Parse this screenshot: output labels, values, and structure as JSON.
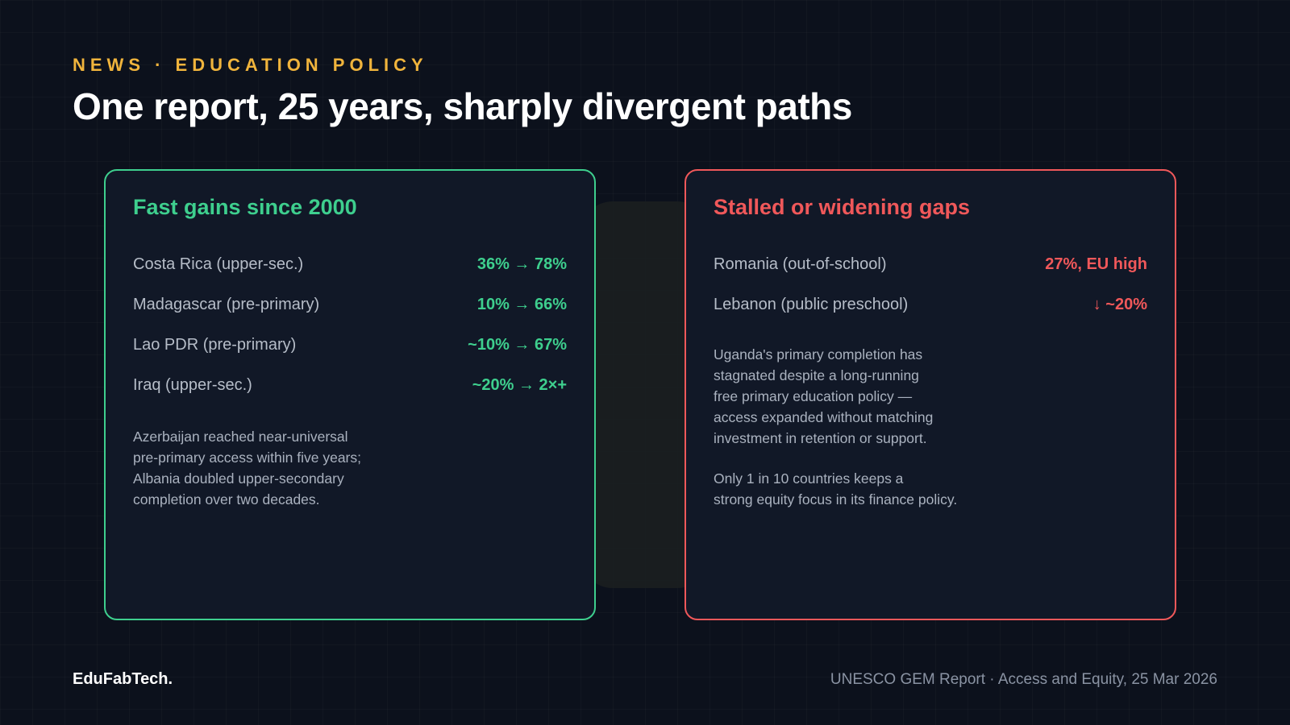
{
  "header": {
    "kicker": "NEWS · EDUCATION POLICY",
    "headline": "One report, 25 years, sharply divergent paths"
  },
  "gains_card": {
    "title": "Fast gains since 2000",
    "rows": [
      {
        "label": "Costa Rica (upper-sec.)",
        "value": "36% → 78%"
      },
      {
        "label": "Madagascar (pre-primary)",
        "value": "10% → 66%"
      },
      {
        "label": "Lao PDR (pre-primary)",
        "value": "~10% → 67%"
      },
      {
        "label": "Iraq (upper-sec.)",
        "value": "~20% → 2×+"
      }
    ],
    "note": "Azerbaijan reached near-universal\npre-primary access within five years;\nAlbania doubled upper-secondary\ncompletion over two decades."
  },
  "gaps_card": {
    "title": "Stalled or widening gaps",
    "rows": [
      {
        "label": "Romania (out-of-school)",
        "value": "27%, EU high"
      },
      {
        "label": "Lebanon (public preschool)",
        "value": "↓ ~20%"
      }
    ],
    "note_1": "Uganda's primary completion has\nstagnated despite a long-running\nfree primary education policy —\naccess expanded without matching\ninvestment in retention or support.",
    "note_2": "Only 1 in 10 countries keeps a\nstrong equity focus in its finance policy."
  },
  "footer": {
    "brand": "EduFabTech.",
    "source": "UNESCO GEM Report · Access and Equity, 25 Mar 2026"
  },
  "colors": {
    "background": "#0c111c",
    "accent_kicker": "#f0b43c",
    "positive": "#3ecf8e",
    "negative": "#f0585a"
  }
}
